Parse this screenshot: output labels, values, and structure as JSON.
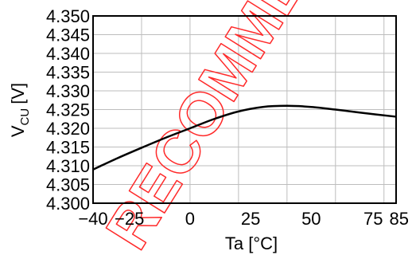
{
  "chart_data": {
    "type": "line",
    "title": "",
    "xlabel": "Ta [°C]",
    "ylabel_main": "V",
    "ylabel_sub": "CU",
    "ylabel_unit": "[V]",
    "xlim": [
      -40,
      85
    ],
    "ylim": [
      4.3,
      4.35
    ],
    "x_ticks": [
      -40,
      -25,
      0,
      25,
      50,
      75,
      85
    ],
    "x_tick_labels": [
      "−40",
      "−25",
      "0",
      "25",
      "50",
      "75",
      "85"
    ],
    "y_ticks": [
      4.3,
      4.305,
      4.31,
      4.315,
      4.32,
      4.325,
      4.33,
      4.335,
      4.34,
      4.345,
      4.35
    ],
    "y_tick_labels": [
      "4.300",
      "4.305",
      "4.310",
      "4.315",
      "4.320",
      "4.325",
      "4.330",
      "4.335",
      "4.340",
      "4.345",
      "4.350"
    ],
    "x_grid": [
      -40,
      -20,
      0,
      20,
      40,
      60,
      80
    ],
    "grid": true,
    "series": [
      {
        "x": [
          -40,
          -30,
          -20,
          -10,
          0,
          10,
          20,
          30,
          40,
          50,
          60,
          70,
          85
        ],
        "values": [
          4.309,
          4.312,
          4.3148,
          4.3175,
          4.32,
          4.3225,
          4.3245,
          4.3257,
          4.326,
          4.3257,
          4.325,
          4.3242,
          4.3231
        ],
        "color": "#000000"
      }
    ],
    "watermark": "RECOMMEND",
    "watermark_color": "#ff2a2a"
  }
}
